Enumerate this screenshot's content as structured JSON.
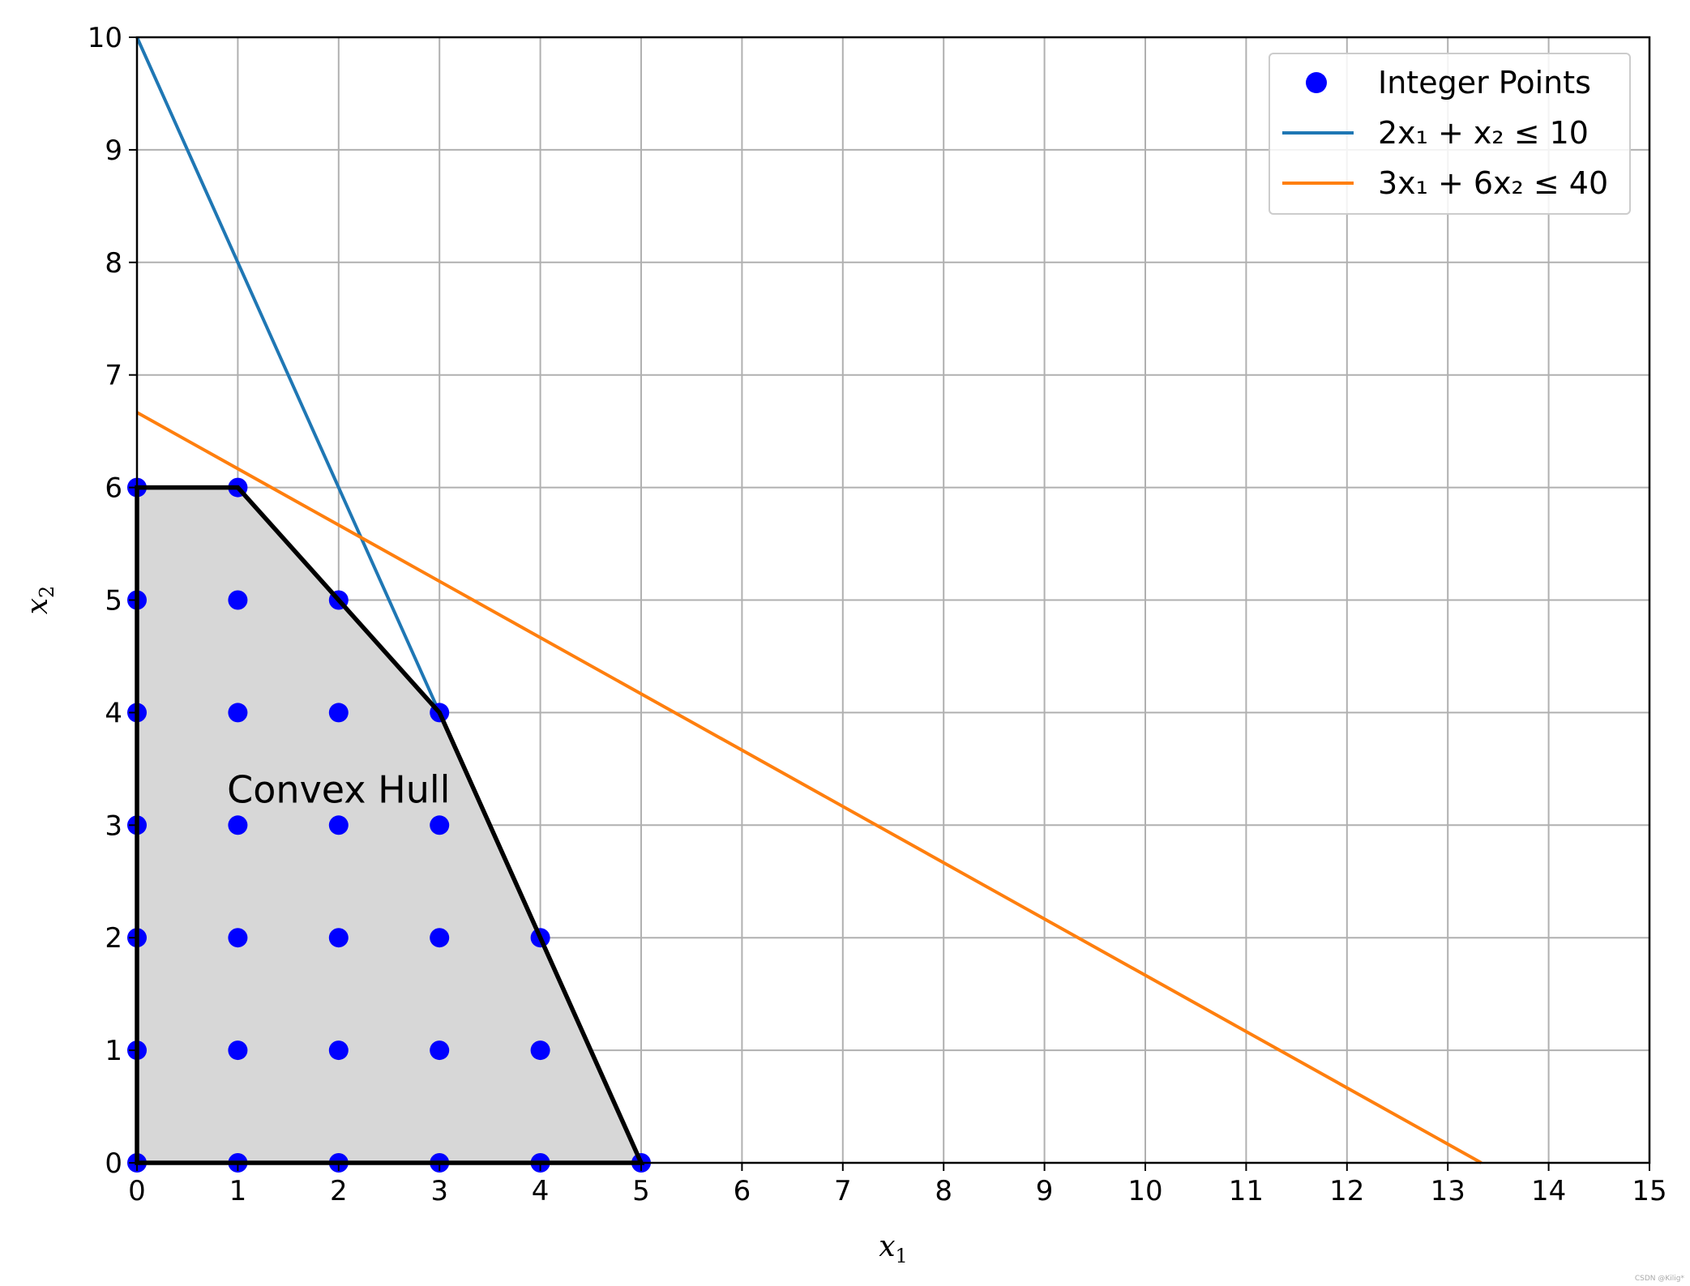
{
  "chart_data": {
    "type": "scatter",
    "xlabel": "x",
    "xlabel_sub": "1",
    "ylabel": "x",
    "ylabel_sub": "2",
    "xlim": [
      0,
      15
    ],
    "ylim": [
      0,
      10
    ],
    "xticks": [
      0,
      1,
      2,
      3,
      4,
      5,
      6,
      7,
      8,
      9,
      10,
      11,
      12,
      13,
      14,
      15
    ],
    "yticks": [
      0,
      1,
      2,
      3,
      4,
      5,
      6,
      7,
      8,
      9,
      10
    ],
    "grid": true,
    "legend_position": "top-right",
    "legend": [
      {
        "label": "Integer Points",
        "kind": "marker",
        "color": "#0000ff"
      },
      {
        "label": "2x₁ + x₂ ≤ 10",
        "kind": "line",
        "color": "#1f77b4"
      },
      {
        "label": "3x₁ + 6x₂ ≤ 40",
        "kind": "line",
        "color": "#ff7f0e"
      }
    ],
    "series": [
      {
        "name": "Integer Points",
        "type": "scatter",
        "color": "#0000ff",
        "points": [
          [
            0,
            0
          ],
          [
            0,
            1
          ],
          [
            0,
            2
          ],
          [
            0,
            3
          ],
          [
            0,
            4
          ],
          [
            0,
            5
          ],
          [
            0,
            6
          ],
          [
            1,
            0
          ],
          [
            1,
            1
          ],
          [
            1,
            2
          ],
          [
            1,
            3
          ],
          [
            1,
            4
          ],
          [
            1,
            5
          ],
          [
            1,
            6
          ],
          [
            2,
            0
          ],
          [
            2,
            1
          ],
          [
            2,
            2
          ],
          [
            2,
            3
          ],
          [
            2,
            4
          ],
          [
            2,
            5
          ],
          [
            3,
            0
          ],
          [
            3,
            1
          ],
          [
            3,
            2
          ],
          [
            3,
            3
          ],
          [
            3,
            4
          ],
          [
            4,
            0
          ],
          [
            4,
            1
          ],
          [
            4,
            2
          ],
          [
            5,
            0
          ]
        ]
      },
      {
        "name": "2x₁ + x₂ ≤ 10",
        "type": "line",
        "color": "#1f77b4",
        "points": [
          [
            0,
            10
          ],
          [
            3,
            4
          ]
        ]
      },
      {
        "name": "3x₁ + 6x₂ ≤ 40",
        "type": "line",
        "color": "#ff7f0e",
        "points": [
          [
            0,
            6.667
          ],
          [
            13.333,
            0
          ]
        ]
      }
    ],
    "hull": {
      "fill": "#d7d7d7",
      "stroke": "#000000",
      "vertices": [
        [
          0,
          0
        ],
        [
          0,
          6
        ],
        [
          1,
          6
        ],
        [
          2,
          5
        ],
        [
          3,
          4
        ],
        [
          5,
          0
        ]
      ]
    },
    "annotation": {
      "text": "Convex Hull",
      "x": 2,
      "y": 3.2
    }
  },
  "credit": "CSDN @Kilig*"
}
